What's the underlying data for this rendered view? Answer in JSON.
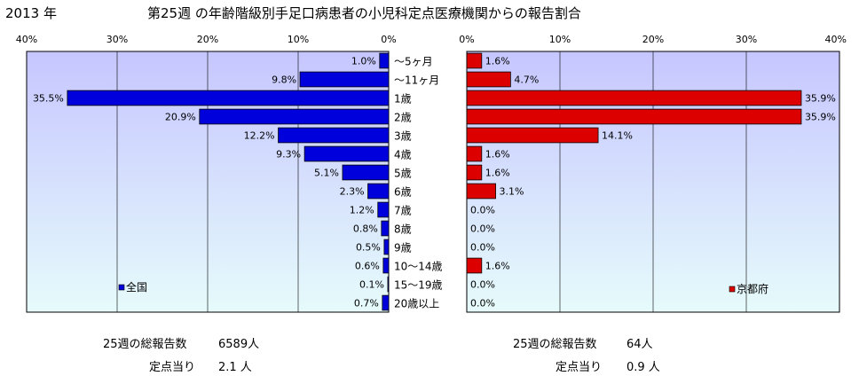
{
  "header": {
    "year": "2013 年",
    "title": "第25週 の年齢階級別手足口病患者の小児科定点医療機関からの報告割合"
  },
  "colors": {
    "left_bar": "#0000dd",
    "right_bar": "#dd0000",
    "plot_top": "#c6c6ff",
    "plot_bottom": "#e6fbfb",
    "grid": "#000000"
  },
  "chart_data": [
    {
      "type": "bar",
      "orientation": "horizontal",
      "direction": "reversed",
      "legend": "全国",
      "legend_position": "bottom-left",
      "xlim": [
        0,
        40
      ],
      "ticks": [
        "40%",
        "30%",
        "20%",
        "10%",
        "0%"
      ],
      "tick_values": [
        40,
        30,
        20,
        10,
        0
      ],
      "categories": [
        "～5ヶ月",
        "～11ヶ月",
        "1歳",
        "2歳",
        "3歳",
        "4歳",
        "5歳",
        "6歳",
        "7歳",
        "8歳",
        "9歳",
        "10～14歳",
        "15～19歳",
        "20歳以上"
      ],
      "values": [
        1.0,
        9.8,
        35.5,
        20.9,
        12.2,
        9.3,
        5.1,
        2.3,
        1.2,
        0.8,
        0.5,
        0.6,
        0.1,
        0.7
      ],
      "value_labels": [
        "1.0%",
        "9.8%",
        "35.5%",
        "20.9%",
        "12.2%",
        "9.3%",
        "5.1%",
        "2.3%",
        "1.2%",
        "0.8%",
        "0.5%",
        "0.6%",
        "0.1%",
        "0.7%"
      ]
    },
    {
      "type": "bar",
      "orientation": "horizontal",
      "legend": "京都府",
      "legend_position": "bottom-right",
      "xlim": [
        0,
        40
      ],
      "ticks": [
        "0%",
        "10%",
        "20%",
        "30%",
        "40%"
      ],
      "tick_values": [
        0,
        10,
        20,
        30,
        40
      ],
      "categories": [
        "～5ヶ月",
        "～11ヶ月",
        "1歳",
        "2歳",
        "3歳",
        "4歳",
        "5歳",
        "6歳",
        "7歳",
        "8歳",
        "9歳",
        "10～14歳",
        "15～19歳",
        "20歳以上"
      ],
      "values": [
        1.6,
        4.7,
        35.9,
        35.9,
        14.1,
        1.6,
        1.6,
        3.1,
        0.0,
        0.0,
        0.0,
        1.6,
        0.0,
        0.0
      ],
      "value_labels": [
        "1.6%",
        "4.7%",
        "35.9%",
        "35.9%",
        "14.1%",
        "1.6%",
        "1.6%",
        "3.1%",
        "0.0%",
        "0.0%",
        "0.0%",
        "1.6%",
        "0.0%",
        "0.0%"
      ]
    }
  ],
  "footer": {
    "left": {
      "total_label": "25週の総報告数",
      "total_value": "6589人",
      "per_label": "定点当り",
      "per_value": "2.1 人"
    },
    "right": {
      "total_label": "25週の総報告数",
      "total_value": "64人",
      "per_label": "定点当り",
      "per_value": "0.9 人"
    }
  }
}
